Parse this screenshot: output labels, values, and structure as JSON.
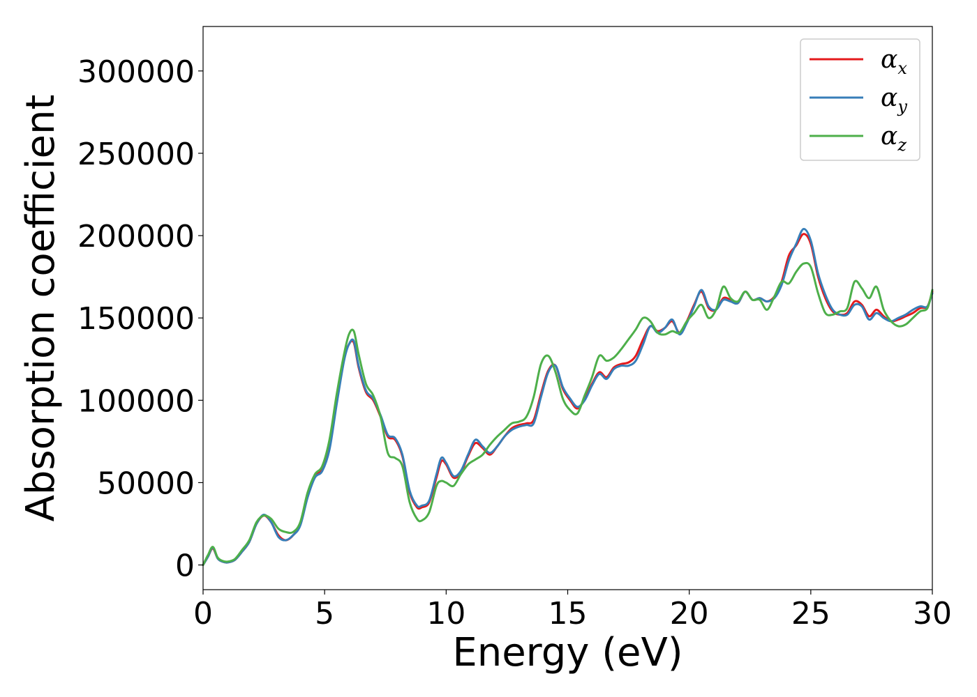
{
  "chart_data": {
    "type": "line",
    "title": "",
    "xlabel": "Energy (eV)",
    "ylabel": "Absorption coefficient",
    "xlim": [
      0,
      30
    ],
    "ylim": [
      -15000,
      327000
    ],
    "xticks": [
      0,
      5,
      10,
      15,
      20,
      25,
      30
    ],
    "yticks": [
      0,
      50000,
      100000,
      150000,
      200000,
      250000,
      300000
    ],
    "grid": false,
    "legend_position": "top-right",
    "series": [
      {
        "name": "α",
        "subscript": "x",
        "color": "#e41a1c",
        "x": [
          0,
          0.2,
          0.4,
          0.6,
          0.8,
          1.0,
          1.3,
          1.6,
          1.9,
          2.2,
          2.5,
          2.8,
          3.1,
          3.4,
          3.7,
          4.0,
          4.3,
          4.6,
          4.9,
          5.2,
          5.5,
          5.8,
          6.0,
          6.2,
          6.4,
          6.7,
          7.0,
          7.3,
          7.6,
          7.9,
          8.2,
          8.5,
          8.8,
          9.0,
          9.3,
          9.6,
          9.8,
          10.0,
          10.3,
          10.6,
          10.9,
          11.2,
          11.5,
          11.8,
          12.1,
          12.4,
          12.7,
          13.0,
          13.3,
          13.6,
          13.9,
          14.2,
          14.5,
          14.8,
          15.1,
          15.4,
          15.7,
          16.0,
          16.3,
          16.6,
          16.9,
          17.2,
          17.5,
          17.8,
          18.1,
          18.4,
          18.7,
          19.0,
          19.3,
          19.6,
          19.9,
          20.2,
          20.5,
          20.8,
          21.1,
          21.4,
          21.7,
          22.0,
          22.3,
          22.6,
          22.9,
          23.2,
          23.5,
          23.8,
          24.1,
          24.4,
          24.7,
          25.0,
          25.3,
          25.6,
          25.9,
          26.2,
          26.5,
          26.8,
          27.1,
          27.4,
          27.7,
          28.0,
          28.3,
          28.6,
          28.9,
          29.2,
          29.5,
          29.8,
          30.0
        ],
        "y": [
          0,
          5000,
          10000,
          4000,
          2000,
          1500,
          3000,
          8000,
          14000,
          25000,
          30000,
          26000,
          18000,
          15000,
          18000,
          25000,
          42000,
          54000,
          58000,
          72000,
          100000,
          125000,
          134000,
          135000,
          120000,
          105000,
          100000,
          90000,
          78000,
          76000,
          66000,
          44000,
          35000,
          35000,
          38000,
          53000,
          63000,
          61000,
          53000,
          56000,
          66000,
          74000,
          71000,
          67000,
          72000,
          78000,
          83000,
          85000,
          86000,
          88000,
          104000,
          118000,
          121000,
          107000,
          100000,
          95000,
          101000,
          110000,
          117000,
          114000,
          120000,
          122000,
          123000,
          127000,
          137000,
          145000,
          142000,
          144000,
          148000,
          141000,
          148000,
          158000,
          166000,
          156000,
          155000,
          162000,
          161000,
          159000,
          166000,
          161000,
          162000,
          160000,
          163000,
          172000,
          188000,
          194000,
          201000,
          195000,
          175000,
          162000,
          154000,
          152000,
          153000,
          160000,
          158000,
          151000,
          155000,
          151000,
          148000,
          149000,
          151000,
          153000,
          156000,
          157000,
          166000
        ]
      },
      {
        "name": "α",
        "subscript": "y",
        "color": "#377eb8",
        "x": [
          0,
          0.2,
          0.4,
          0.6,
          0.8,
          1.0,
          1.3,
          1.6,
          1.9,
          2.2,
          2.5,
          2.8,
          3.1,
          3.4,
          3.7,
          4.0,
          4.3,
          4.6,
          4.9,
          5.2,
          5.5,
          5.8,
          6.0,
          6.2,
          6.4,
          6.7,
          7.0,
          7.3,
          7.6,
          7.9,
          8.2,
          8.5,
          8.8,
          9.0,
          9.3,
          9.6,
          9.8,
          10.0,
          10.3,
          10.6,
          10.9,
          11.2,
          11.5,
          11.8,
          12.1,
          12.4,
          12.7,
          13.0,
          13.3,
          13.6,
          13.9,
          14.2,
          14.5,
          14.8,
          15.1,
          15.4,
          15.7,
          16.0,
          16.3,
          16.6,
          16.9,
          17.2,
          17.5,
          17.8,
          18.1,
          18.4,
          18.7,
          19.0,
          19.3,
          19.6,
          19.9,
          20.2,
          20.5,
          20.8,
          21.1,
          21.4,
          21.7,
          22.0,
          22.3,
          22.6,
          22.9,
          23.2,
          23.5,
          23.8,
          24.1,
          24.4,
          24.7,
          25.0,
          25.3,
          25.6,
          25.9,
          26.2,
          26.5,
          26.8,
          27.1,
          27.4,
          27.7,
          28.0,
          28.3,
          28.6,
          28.9,
          29.2,
          29.5,
          29.8,
          30.0
        ],
        "y": [
          0,
          5000,
          10500,
          4000,
          2000,
          1500,
          3000,
          8000,
          14000,
          25000,
          30500,
          26000,
          17000,
          15000,
          18000,
          24000,
          41000,
          53000,
          57000,
          70000,
          98000,
          124000,
          134000,
          136000,
          121000,
          106000,
          101000,
          91000,
          79000,
          77000,
          67000,
          45000,
          36000,
          36000,
          39000,
          55000,
          65000,
          62000,
          54000,
          57000,
          67000,
          76000,
          72000,
          68000,
          72000,
          78000,
          82000,
          84000,
          85000,
          86000,
          102000,
          117000,
          121000,
          108000,
          101000,
          96000,
          100000,
          109000,
          116000,
          113000,
          119000,
          121000,
          121000,
          124000,
          134000,
          145000,
          141000,
          144000,
          149000,
          140000,
          147000,
          157000,
          167000,
          157000,
          155000,
          161000,
          160000,
          159000,
          166000,
          161000,
          162000,
          160000,
          162000,
          170000,
          185000,
          195000,
          204000,
          197000,
          177000,
          164000,
          155000,
          152000,
          152000,
          158000,
          157000,
          149000,
          153000,
          150000,
          148000,
          150000,
          152000,
          155000,
          157000,
          157000,
          165000
        ]
      },
      {
        "name": "α",
        "subscript": "z",
        "color": "#4daf4a",
        "x": [
          0,
          0.2,
          0.4,
          0.6,
          0.8,
          1.0,
          1.3,
          1.6,
          1.9,
          2.2,
          2.5,
          2.8,
          3.1,
          3.4,
          3.7,
          4.0,
          4.3,
          4.6,
          4.9,
          5.2,
          5.5,
          5.8,
          6.0,
          6.2,
          6.4,
          6.7,
          7.0,
          7.3,
          7.6,
          7.9,
          8.2,
          8.5,
          8.8,
          9.0,
          9.3,
          9.6,
          9.8,
          10.0,
          10.3,
          10.6,
          10.9,
          11.2,
          11.5,
          11.8,
          12.1,
          12.4,
          12.7,
          13.0,
          13.3,
          13.6,
          13.9,
          14.2,
          14.5,
          14.8,
          15.1,
          15.4,
          15.7,
          16.0,
          16.3,
          16.6,
          16.9,
          17.2,
          17.5,
          17.8,
          18.1,
          18.4,
          18.7,
          19.0,
          19.3,
          19.6,
          19.9,
          20.2,
          20.5,
          20.8,
          21.1,
          21.4,
          21.7,
          22.0,
          22.3,
          22.6,
          22.9,
          23.2,
          23.5,
          23.8,
          24.1,
          24.4,
          24.7,
          25.0,
          25.3,
          25.6,
          25.9,
          26.2,
          26.5,
          26.8,
          27.1,
          27.4,
          27.7,
          28.0,
          28.3,
          28.6,
          28.9,
          29.2,
          29.5,
          29.8,
          30.0
        ],
        "y": [
          0,
          6000,
          11000,
          4500,
          2500,
          2000,
          3500,
          9000,
          15000,
          26000,
          30000,
          28000,
          22000,
          20000,
          20000,
          26000,
          44000,
          55000,
          60000,
          76000,
          104000,
          128000,
          140000,
          142000,
          128000,
          110000,
          103000,
          90000,
          68000,
          65000,
          60000,
          38000,
          28000,
          27000,
          32000,
          48000,
          51000,
          50000,
          48000,
          55000,
          61000,
          64000,
          67000,
          73000,
          78000,
          82000,
          86000,
          87000,
          90000,
          102000,
          122000,
          127000,
          117000,
          101000,
          94000,
          92000,
          103000,
          114000,
          127000,
          124000,
          126000,
          131000,
          137000,
          143000,
          150000,
          148000,
          141000,
          140000,
          142000,
          141000,
          148000,
          153000,
          158000,
          150000,
          155000,
          169000,
          162000,
          160000,
          166000,
          161000,
          161000,
          155000,
          163000,
          172000,
          171000,
          178000,
          183000,
          181000,
          165000,
          153000,
          152000,
          154000,
          156000,
          172000,
          168000,
          162000,
          169000,
          155000,
          148000,
          145000,
          146000,
          150000,
          154000,
          156000,
          167000
        ]
      }
    ]
  }
}
